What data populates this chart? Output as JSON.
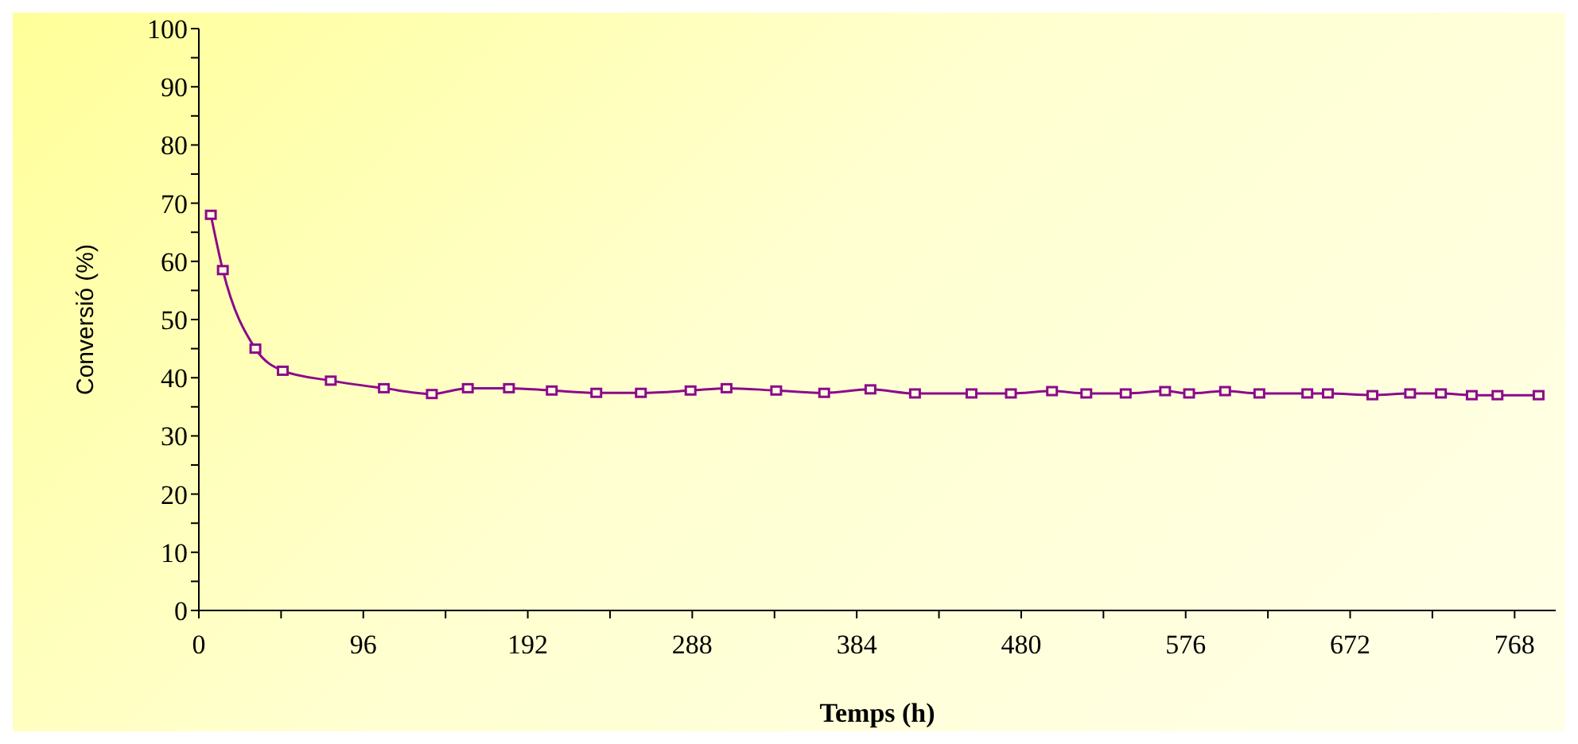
{
  "chart_data": {
    "type": "line",
    "xlabel": "Temps (h)",
    "ylabel": "Conversió (%)",
    "x": [
      7,
      14,
      33,
      49,
      77,
      108,
      136,
      157,
      181,
      206,
      232,
      258,
      287,
      308,
      337,
      365,
      392,
      418,
      451,
      474,
      498,
      518,
      541,
      564,
      578,
      599,
      619,
      647,
      659,
      685,
      707,
      725,
      743,
      758,
      782
    ],
    "series": [
      {
        "color": "#8b0a8b",
        "values": [
          68,
          58.5,
          45,
          41.2,
          39.5,
          38.2,
          37.2,
          38.2,
          38.2,
          37.8,
          37.4,
          37.4,
          37.8,
          38.2,
          37.8,
          37.4,
          38,
          37.3,
          37.3,
          37.3,
          37.7,
          37.3,
          37.3,
          37.7,
          37.3,
          37.7,
          37.3,
          37.3,
          37.3,
          37,
          37.3,
          37.3,
          37,
          37,
          37
        ]
      }
    ],
    "xlim": [
      0,
      792
    ],
    "xticks": [
      0,
      {
        "value": 48,
        "label": null
      },
      96,
      {
        "value": 144,
        "label": null
      },
      192,
      {
        "value": 240,
        "label": null
      },
      288,
      {
        "value": 336,
        "label": null
      },
      384,
      {
        "value": 432,
        "label": null
      },
      480,
      {
        "value": 528,
        "label": null
      },
      576,
      {
        "value": 624,
        "label": null
      },
      672,
      {
        "value": 720,
        "label": null
      },
      768
    ],
    "ylim": [
      0,
      100
    ],
    "yticks": [
      0,
      {
        "value": 5,
        "label": null
      },
      10,
      {
        "value": 15,
        "label": null
      },
      20,
      {
        "value": 25,
        "label": null
      },
      30,
      {
        "value": 35,
        "label": null
      },
      40,
      {
        "value": 45,
        "label": null
      },
      50,
      {
        "value": 55,
        "label": null
      },
      60,
      {
        "value": 65,
        "label": null
      },
      70,
      {
        "value": 75,
        "label": null
      },
      80,
      {
        "value": 85,
        "label": null
      },
      90,
      {
        "value": 95,
        "label": null
      },
      100
    ],
    "grid": false,
    "marker": "square",
    "line_style": "solid"
  }
}
